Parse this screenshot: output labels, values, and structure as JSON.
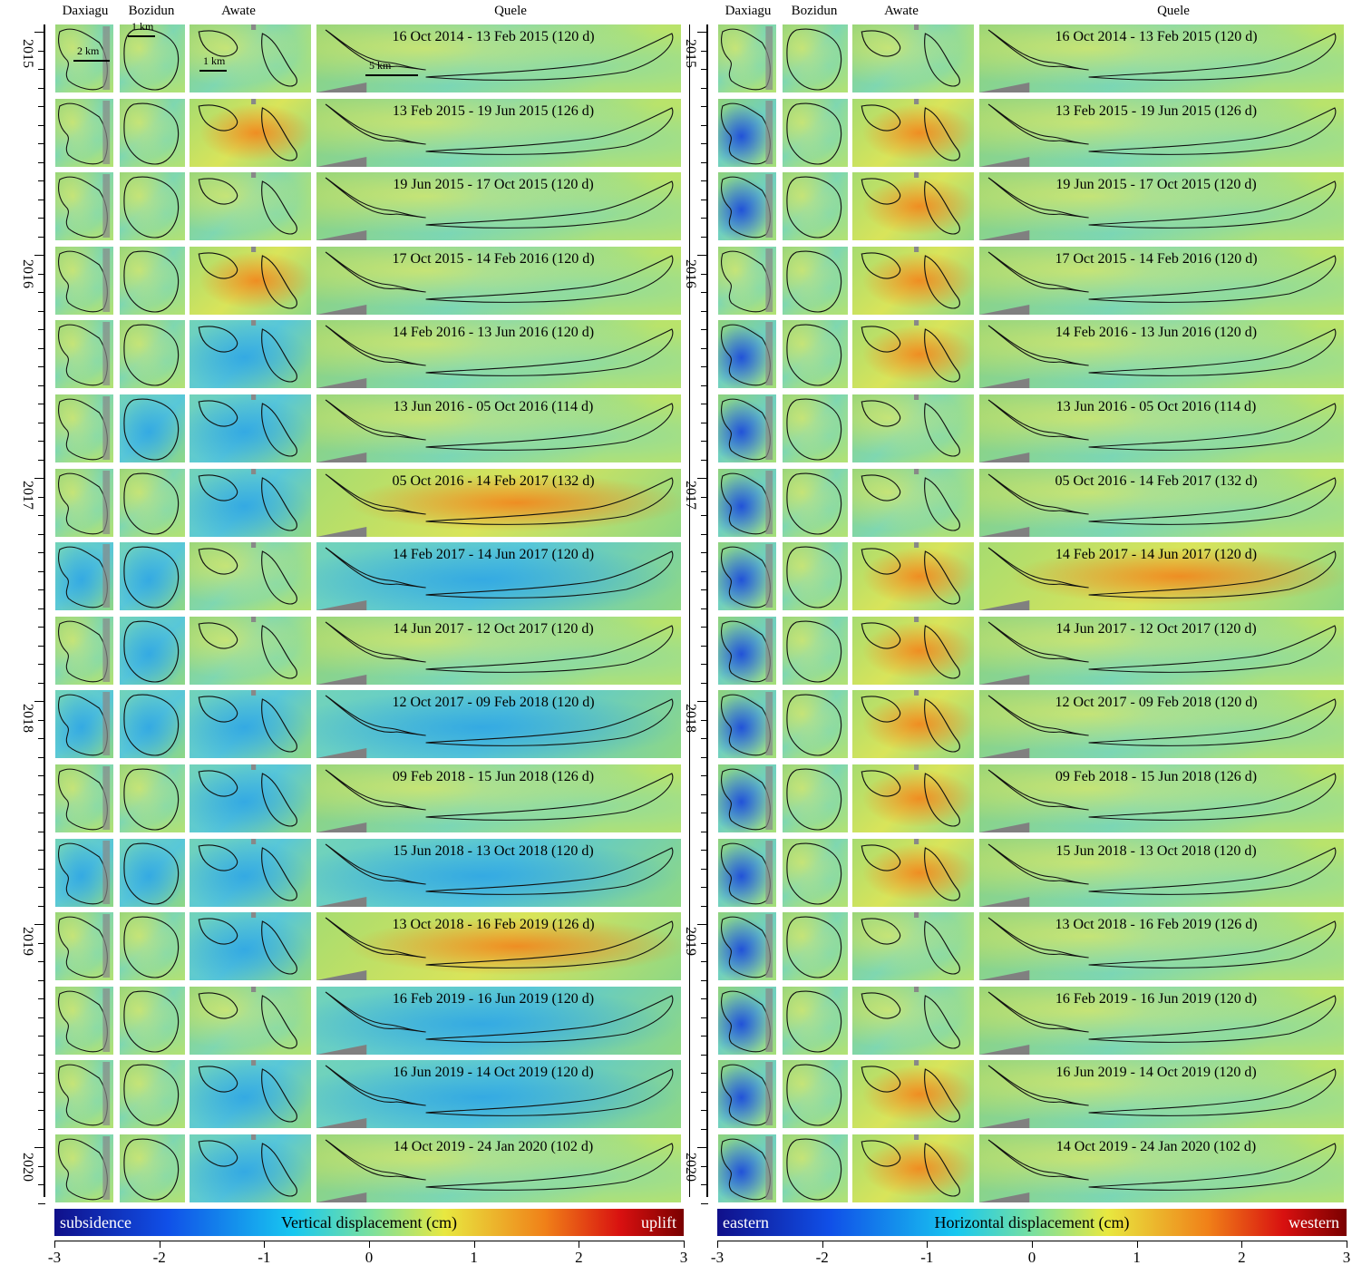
{
  "panels": [
    {
      "id": "vertical",
      "column_headers": [
        "Daxiagu",
        "Bozidun",
        "Awate",
        "Quele"
      ]
    },
    {
      "id": "horizontal",
      "column_headers": [
        "Daxiagu",
        "Bozidun",
        "Awate",
        "Quele"
      ]
    }
  ],
  "year_labels": [
    "2015",
    "2016",
    "2017",
    "2018",
    "2019",
    "2020"
  ],
  "scale_bars": {
    "daxiagu": "2 km",
    "bozidun": "1 km",
    "awate": "1 km",
    "quele": "5 km"
  },
  "intervals": [
    {
      "label": "16 Oct 2014 - 13 Feb 2015 (120 d)",
      "v": [
        "n",
        "n",
        "n",
        "n"
      ],
      "h": [
        "n",
        "n",
        "n",
        "n"
      ]
    },
    {
      "label": "13 Feb 2015 - 19 Jun 2015 (126 d)",
      "v": [
        "n",
        "n",
        "pos",
        "n"
      ],
      "h": [
        "neg",
        "n",
        "pos",
        "n"
      ]
    },
    {
      "label": "19 Jun 2015 - 17 Oct 2015 (120 d)",
      "v": [
        "n",
        "n",
        "n",
        "n"
      ],
      "h": [
        "neg",
        "n",
        "pos",
        "n"
      ]
    },
    {
      "label": "17 Oct 2015 - 14 Feb 2016 (120 d)",
      "v": [
        "n",
        "n",
        "pos",
        "n"
      ],
      "h": [
        "n",
        "n",
        "pos",
        "n"
      ]
    },
    {
      "label": "14 Feb 2016 - 13 Jun 2016 (120 d)",
      "v": [
        "n",
        "n",
        "neg",
        "n"
      ],
      "h": [
        "neg",
        "n",
        "pos",
        "n"
      ]
    },
    {
      "label": "13 Jun 2016 - 05 Oct 2016 (114 d)",
      "v": [
        "n",
        "neg",
        "neg",
        "n"
      ],
      "h": [
        "neg",
        "n",
        "n",
        "n"
      ]
    },
    {
      "label": "05 Oct 2016 - 14 Feb 2017 (132 d)",
      "v": [
        "n",
        "n",
        "neg",
        "pos"
      ],
      "h": [
        "neg",
        "n",
        "n",
        "n"
      ]
    },
    {
      "label": "14 Feb 2017 - 14 Jun 2017 (120 d)",
      "v": [
        "neg",
        "neg",
        "n",
        "neg"
      ],
      "h": [
        "neg",
        "n",
        "pos",
        "pos"
      ]
    },
    {
      "label": "14 Jun 2017 - 12 Oct 2017 (120 d)",
      "v": [
        "n",
        "neg",
        "n",
        "n"
      ],
      "h": [
        "neg",
        "n",
        "pos",
        "n"
      ]
    },
    {
      "label": "12 Oct 2017 - 09 Feb 2018 (120 d)",
      "v": [
        "neg",
        "neg",
        "neg",
        "neg"
      ],
      "h": [
        "neg",
        "n",
        "pos",
        "n"
      ]
    },
    {
      "label": "09 Feb 2018 - 15 Jun 2018 (126 d)",
      "v": [
        "n",
        "n",
        "neg",
        "n"
      ],
      "h": [
        "neg",
        "n",
        "pos",
        "n"
      ]
    },
    {
      "label": "15 Jun 2018 - 13 Oct 2018 (120 d)",
      "v": [
        "neg",
        "neg",
        "neg",
        "neg"
      ],
      "h": [
        "neg",
        "n",
        "pos",
        "n"
      ]
    },
    {
      "label": "13 Oct 2018 - 16 Feb 2019 (126 d)",
      "v": [
        "n",
        "n",
        "neg",
        "pos"
      ],
      "h": [
        "neg",
        "n",
        "n",
        "n"
      ]
    },
    {
      "label": "16 Feb 2019 - 16 Jun 2019 (120 d)",
      "v": [
        "n",
        "n",
        "n",
        "neg"
      ],
      "h": [
        "neg",
        "n",
        "n",
        "n"
      ]
    },
    {
      "label": "16 Jun 2019 - 14 Oct 2019 (120 d)",
      "v": [
        "n",
        "n",
        "neg",
        "neg"
      ],
      "h": [
        "neg",
        "n",
        "pos",
        "n"
      ]
    },
    {
      "label": "14 Oct 2019 - 24 Jan 2020 (102 d)",
      "v": [
        "n",
        "n",
        "neg",
        "n"
      ],
      "h": [
        "neg",
        "n",
        "pos",
        "n"
      ]
    }
  ],
  "colorbars": [
    {
      "id": "vertical",
      "left_label": "subsidence",
      "title": "Vertical displacement (cm)",
      "right_label": "uplift",
      "ticks": [
        "-3",
        "-2",
        "-1",
        "0",
        "1",
        "2",
        "3"
      ],
      "range": [
        -3,
        3
      ]
    },
    {
      "id": "horizontal",
      "left_label": "eastern",
      "title": "Horizontal displacement (cm)",
      "right_label": "western",
      "ticks": [
        "-3",
        "-2",
        "-1",
        "0",
        "1",
        "2",
        "3"
      ],
      "range": [
        -3,
        3
      ]
    }
  ]
}
